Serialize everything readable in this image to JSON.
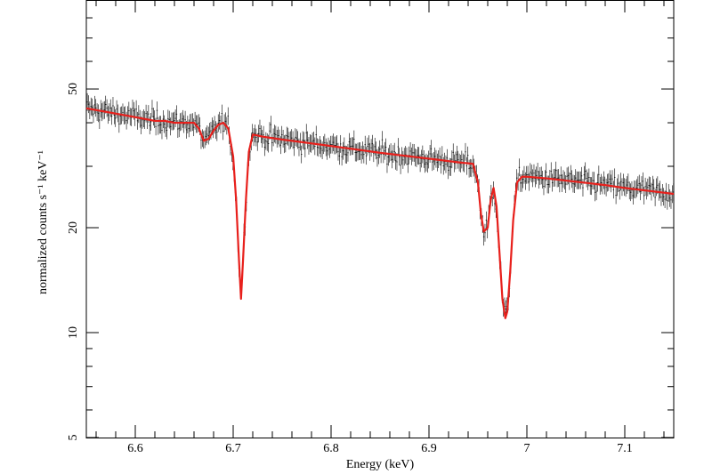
{
  "chart_data": {
    "type": "line",
    "xlabel": "Energy (keV)",
    "ylabel": "normalized counts s⁻¹ keV⁻¹",
    "xlim": [
      6.55,
      7.15
    ],
    "ylim": [
      5,
      90
    ],
    "yscale": "log",
    "x_ticks": [
      6.6,
      6.7,
      6.8,
      6.9,
      7.0,
      7.1
    ],
    "x_tick_labels": [
      "6.6",
      "6.7",
      "6.8",
      "6.9",
      "7",
      "7.1"
    ],
    "y_ticks": [
      5,
      10,
      20,
      50
    ],
    "y_tick_labels": [
      "5",
      "10",
      "20",
      "50"
    ],
    "grid": false,
    "colors": {
      "data": "#000000",
      "model": "#e8201c"
    },
    "series": [
      {
        "role": "data",
        "style": "points-with-error-bars",
        "x": [
          6.55,
          6.56,
          6.57,
          6.58,
          6.59,
          6.6,
          6.61,
          6.62,
          6.63,
          6.64,
          6.65,
          6.66,
          6.665,
          6.67,
          6.675,
          6.68,
          6.685,
          6.69,
          6.695,
          6.7,
          6.703,
          6.706,
          6.708,
          6.71,
          6.713,
          6.716,
          6.72,
          6.73,
          6.75,
          6.77,
          6.79,
          6.81,
          6.83,
          6.85,
          6.87,
          6.89,
          6.91,
          6.93,
          6.94,
          6.945,
          6.95,
          6.953,
          6.956,
          6.96,
          6.963,
          6.966,
          6.969,
          6.972,
          6.975,
          6.978,
          6.98,
          6.983,
          6.986,
          6.99,
          6.995,
          7.0,
          7.02,
          7.04,
          7.06,
          7.08,
          7.1,
          7.12,
          7.14,
          7.15
        ],
        "y": [
          44,
          43.5,
          43,
          42.5,
          42,
          41.5,
          41,
          40.5,
          40.5,
          40,
          40,
          40,
          38.5,
          35.5,
          36,
          38,
          39.5,
          40,
          38.5,
          32,
          24,
          16,
          12.5,
          16,
          24,
          33,
          37,
          36.5,
          35.8,
          35.2,
          34.6,
          34,
          33.4,
          32.8,
          32.3,
          31.8,
          31.3,
          30.8,
          30.6,
          30.5,
          27,
          22,
          19.5,
          20,
          24,
          26,
          23,
          17,
          12.5,
          11,
          11.5,
          15,
          21,
          27,
          28,
          28,
          27.7,
          27.3,
          26.9,
          26.5,
          26,
          25.6,
          25.2,
          25
        ]
      },
      {
        "role": "model",
        "style": "line",
        "x": [
          6.55,
          6.56,
          6.57,
          6.58,
          6.59,
          6.6,
          6.61,
          6.62,
          6.63,
          6.64,
          6.65,
          6.66,
          6.665,
          6.67,
          6.675,
          6.68,
          6.685,
          6.69,
          6.695,
          6.7,
          6.703,
          6.706,
          6.708,
          6.71,
          6.713,
          6.716,
          6.72,
          6.73,
          6.75,
          6.77,
          6.79,
          6.81,
          6.83,
          6.85,
          6.87,
          6.89,
          6.91,
          6.93,
          6.94,
          6.945,
          6.95,
          6.953,
          6.956,
          6.96,
          6.963,
          6.966,
          6.969,
          6.972,
          6.975,
          6.978,
          6.98,
          6.983,
          6.986,
          6.99,
          6.995,
          7.0,
          7.02,
          7.04,
          7.06,
          7.08,
          7.1,
          7.12,
          7.14,
          7.15
        ],
        "y": [
          44,
          43.5,
          43,
          42.5,
          42,
          41.5,
          41,
          40.5,
          40.5,
          40,
          40,
          40,
          38.5,
          35.5,
          36,
          38,
          39.5,
          40,
          38.5,
          32,
          24,
          16,
          12.5,
          16,
          24,
          33,
          37,
          36.5,
          35.8,
          35.2,
          34.6,
          34,
          33.4,
          32.8,
          32.3,
          31.8,
          31.3,
          30.8,
          30.6,
          30.5,
          27,
          22,
          19.5,
          20,
          24,
          26,
          23,
          17,
          12.5,
          11,
          11.5,
          15,
          21,
          27,
          28,
          28,
          27.7,
          27.3,
          26.9,
          26.5,
          26,
          25.6,
          25.2,
          25
        ]
      }
    ]
  }
}
